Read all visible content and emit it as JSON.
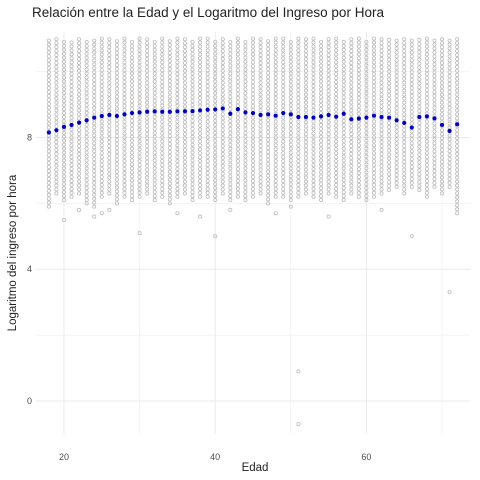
{
  "chart_data": {
    "type": "scatter",
    "title": "Relación entre la Edad y el Logaritmo del Ingreso por Hora",
    "xlabel": "Edad",
    "ylabel": "Logaritmo del ingreso por hora",
    "xlim": [
      16.3,
      73.7
    ],
    "ylim": [
      -1.0,
      11.2
    ],
    "x_ticks": [
      20,
      40,
      60
    ],
    "y_ticks": [
      0,
      4,
      8
    ],
    "grid": true,
    "colors": {
      "points": "#bdbdbd",
      "means": "#0000cd",
      "grid": "#ebebeb",
      "background": "#ffffff"
    },
    "series": [
      {
        "role": "observations",
        "ages": [
          18,
          19,
          20,
          21,
          22,
          23,
          24,
          25,
          26,
          27,
          28,
          29,
          30,
          31,
          32,
          33,
          34,
          35,
          36,
          37,
          38,
          39,
          40,
          41,
          42,
          43,
          44,
          45,
          46,
          47,
          48,
          49,
          50,
          51,
          52,
          53,
          54,
          55,
          56,
          57,
          58,
          59,
          60,
          61,
          62,
          63,
          64,
          65,
          66,
          67,
          68,
          69,
          70,
          71,
          72
        ],
        "y_min": [
          5.9,
          6.3,
          6.1,
          6.2,
          6.3,
          6.1,
          5.9,
          6.2,
          6.3,
          6.0,
          6.2,
          6.1,
          6.2,
          6.3,
          6.1,
          6.2,
          6.0,
          6.2,
          6.3,
          6.1,
          6.2,
          6.2,
          6.1,
          6.3,
          6.1,
          6.2,
          6.1,
          6.2,
          6.3,
          6.0,
          6.2,
          6.2,
          6.1,
          6.2,
          6.3,
          6.2,
          6.1,
          6.3,
          6.2,
          6.1,
          6.3,
          6.2,
          6.1,
          6.2,
          6.3,
          6.4,
          6.5,
          6.3,
          6.5,
          6.4,
          6.2,
          6.5,
          6.3,
          6.5,
          5.7
        ],
        "y_max": [
          11.0,
          11.0,
          11.0,
          10.9,
          11.0,
          11.0,
          11.0,
          11.0,
          11.0,
          11.0,
          11.0,
          11.0,
          11.0,
          11.0,
          11.0,
          11.0,
          11.0,
          11.0,
          11.0,
          11.0,
          11.0,
          11.0,
          11.0,
          11.0,
          11.0,
          11.0,
          11.0,
          11.0,
          11.0,
          11.0,
          11.0,
          11.0,
          11.0,
          11.0,
          11.0,
          11.0,
          11.0,
          11.0,
          11.0,
          11.0,
          11.0,
          11.0,
          11.0,
          11.0,
          11.0,
          11.0,
          11.0,
          11.0,
          11.0,
          11.0,
          11.0,
          11.0,
          11.0,
          11.0,
          11.0
        ],
        "outliers": [
          [
            20,
            5.5
          ],
          [
            22,
            5.8
          ],
          [
            23,
            6.0
          ],
          [
            24,
            5.6
          ],
          [
            25,
            5.7
          ],
          [
            26,
            5.8
          ],
          [
            30,
            5.1
          ],
          [
            35,
            5.7
          ],
          [
            38,
            5.6
          ],
          [
            40,
            5.0
          ],
          [
            42,
            5.8
          ],
          [
            48,
            5.7
          ],
          [
            50,
            5.9
          ],
          [
            55,
            5.6
          ],
          [
            62,
            5.8
          ],
          [
            66,
            5.0
          ],
          [
            71,
            3.3
          ],
          [
            51,
            0.9
          ],
          [
            51,
            -0.7
          ]
        ]
      },
      {
        "role": "mean-by-age",
        "x": [
          18,
          19,
          20,
          21,
          22,
          23,
          24,
          25,
          26,
          27,
          28,
          29,
          30,
          31,
          32,
          33,
          34,
          35,
          36,
          37,
          38,
          39,
          40,
          41,
          42,
          43,
          44,
          45,
          46,
          47,
          48,
          49,
          50,
          51,
          52,
          53,
          54,
          55,
          56,
          57,
          58,
          59,
          60,
          61,
          62,
          63,
          64,
          65,
          66,
          67,
          68,
          69,
          70,
          71,
          72
        ],
        "y": [
          8.15,
          8.22,
          8.32,
          8.38,
          8.45,
          8.52,
          8.6,
          8.65,
          8.68,
          8.65,
          8.7,
          8.74,
          8.76,
          8.78,
          8.79,
          8.78,
          8.78,
          8.79,
          8.79,
          8.8,
          8.82,
          8.84,
          8.85,
          8.88,
          8.72,
          8.86,
          8.76,
          8.74,
          8.68,
          8.7,
          8.66,
          8.74,
          8.7,
          8.62,
          8.62,
          8.6,
          8.64,
          8.68,
          8.63,
          8.72,
          8.55,
          8.57,
          8.6,
          8.66,
          8.62,
          8.6,
          8.52,
          8.44,
          8.3,
          8.62,
          8.64,
          8.58,
          8.38,
          8.2,
          8.4
        ]
      }
    ]
  }
}
